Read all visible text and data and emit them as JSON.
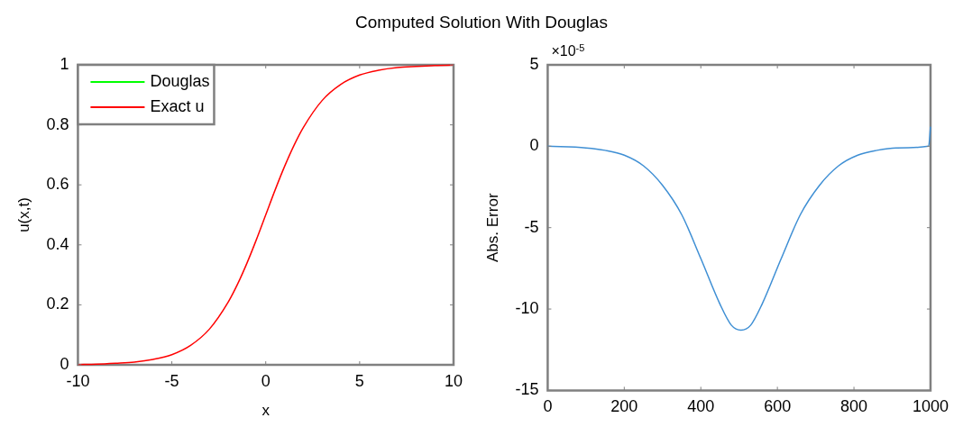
{
  "chart_data": [
    {
      "type": "line",
      "title": "Computed Solution With Douglas",
      "xlabel": "x",
      "ylabel": "u(x,t)",
      "x": [
        -10,
        -9,
        -8,
        -7,
        -6,
        -5,
        -4,
        -3,
        -2,
        -1.5,
        -1,
        -0.5,
        0,
        0.5,
        1,
        1.5,
        2,
        3,
        4,
        5,
        6,
        7,
        8,
        9,
        10
      ],
      "series": [
        {
          "name": "Douglas",
          "color": "#00ff00",
          "values": [
            null,
            null,
            null,
            null,
            null,
            null,
            null,
            null,
            null,
            null,
            null,
            null,
            null,
            null,
            null,
            null,
            null,
            null,
            null,
            null,
            null,
            null,
            null,
            null,
            null
          ]
        },
        {
          "name": "Exact u",
          "color": "#ff0000",
          "values": [
            0.001,
            0.002,
            0.005,
            0.009,
            0.018,
            0.034,
            0.065,
            0.119,
            0.209,
            0.269,
            0.339,
            0.417,
            0.5,
            0.583,
            0.661,
            0.731,
            0.791,
            0.881,
            0.935,
            0.966,
            0.982,
            0.991,
            0.995,
            0.998,
            0.999
          ]
        }
      ],
      "xlim": [
        -10,
        10
      ],
      "xticks": [
        -10,
        -5,
        0,
        5,
        10
      ],
      "ylim": [
        0,
        1
      ],
      "yticks": [
        0,
        0.2,
        0.4,
        0.6,
        0.8,
        1
      ],
      "legend": "top left",
      "grid": false
    },
    {
      "type": "line",
      "ylabel": "Abs. Error",
      "annotations": [
        "×10$^{-5}$"
      ],
      "x": [
        0,
        100,
        150,
        200,
        250,
        300,
        350,
        400,
        450,
        480,
        505,
        530,
        560,
        610,
        660,
        710,
        760,
        810,
        860,
        910,
        995,
        1000
      ],
      "series": [
        {
          "color": "#3f8fd4",
          "values": [
            0,
            -0.1,
            -0.25,
            -0.55,
            -1.2,
            -2.4,
            -4.2,
            -6.9,
            -9.7,
            -11,
            -11.3,
            -11,
            -9.7,
            -6.9,
            -4.2,
            -2.4,
            -1.2,
            -0.55,
            -0.25,
            -0.1,
            0,
            1.2
          ]
        }
      ],
      "xlim": [
        0,
        1000
      ],
      "xticks": [
        0,
        200,
        400,
        600,
        800,
        1000
      ],
      "ylim": [
        -15,
        5
      ],
      "yticks": [
        -15,
        -10,
        -5,
        0,
        5
      ],
      "grid": false
    }
  ]
}
